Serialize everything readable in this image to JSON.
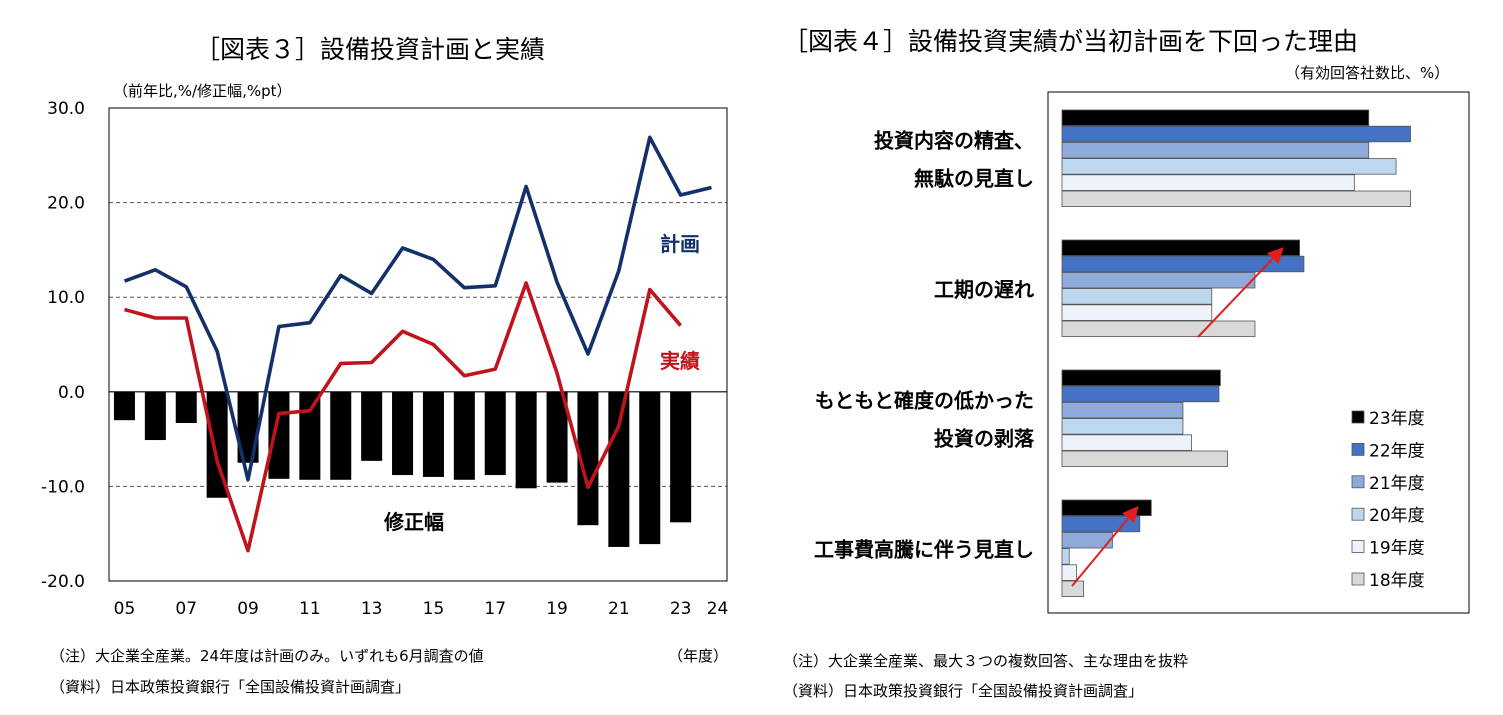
{
  "left": {
    "title": "［図表３］設備投資計画と実績",
    "unit": "（前年比,%/修正幅,%pt）",
    "xunit": "（年度）",
    "note1": "（注）大企業全産業。24年度は計画のみ。いずれも6月調査の値",
    "note2": "（資料）日本政策投資銀行「全国設備投資計画調査」",
    "label_plan": "計画",
    "label_actual": "実績",
    "label_revision": "修正幅",
    "colors": {
      "plan": "#13306b",
      "actual": "#c0141c",
      "revision": "#000000"
    }
  },
  "right": {
    "title": "［図表４］設備投資実績が当初計画を下回った理由",
    "unit": "（有効回答社数比、%）",
    "note1": "（注）大企業全産業、最大３つの複数回答、主な理由を抜粋",
    "note2": "（資料）日本政策投資銀行「全国設備投資計画調査」"
  },
  "chart_data": [
    {
      "type": "line",
      "ylim": [
        -20,
        30
      ],
      "yticks": [
        "30.0",
        "20.0",
        "10.0",
        "0.0",
        "-10.0",
        "-20.0"
      ],
      "x": [
        2005,
        2006,
        2007,
        2008,
        2009,
        2010,
        2011,
        2012,
        2013,
        2014,
        2015,
        2016,
        2017,
        2018,
        2019,
        2020,
        2021,
        2022,
        2023,
        2024
      ],
      "xtick_labels": [
        "05",
        "07",
        "09",
        "11",
        "13",
        "15",
        "17",
        "19",
        "21",
        "23",
        "24"
      ],
      "series": [
        {
          "name": "計画",
          "kind": "line",
          "values": [
            11.7,
            12.9,
            11.1,
            4.3,
            -9.3,
            6.9,
            7.3,
            12.3,
            10.4,
            15.2,
            14.0,
            11.0,
            11.2,
            21.7,
            11.6,
            4.0,
            12.8,
            26.9,
            20.8,
            21.6
          ]
        },
        {
          "name": "実績",
          "kind": "line",
          "values": [
            8.7,
            7.8,
            7.8,
            -7.3,
            -16.8,
            -2.3,
            -2.0,
            3.0,
            3.1,
            6.4,
            5.0,
            1.7,
            2.4,
            11.5,
            2.0,
            -10.1,
            -3.6,
            10.8,
            7.0,
            null
          ]
        },
        {
          "name": "修正幅",
          "kind": "bar",
          "values": [
            -3.0,
            -5.1,
            -3.3,
            -11.2,
            -7.5,
            -9.2,
            -9.3,
            -9.3,
            -7.3,
            -8.8,
            -9.0,
            -9.3,
            -8.8,
            -10.2,
            -9.6,
            -14.1,
            -16.4,
            -16.1,
            -13.8,
            null
          ]
        }
      ]
    },
    {
      "type": "bar",
      "orientation": "horizontal",
      "xlim": [
        0,
        30
      ],
      "categories": [
        {
          "lines": [
            "投資内容の精査、",
            "無駄の見直し"
          ]
        },
        {
          "lines": [
            "工期の遅れ"
          ]
        },
        {
          "lines": [
            "もともと確度の低かった",
            "投資の剥落"
          ]
        },
        {
          "lines": [
            "工事費高騰に伴う見直し"
          ]
        }
      ],
      "series": [
        {
          "name": "23年度",
          "color": "#000000",
          "values": [
            21.3,
            16.5,
            11.0,
            6.2
          ]
        },
        {
          "name": "22年度",
          "color": "#4472c4",
          "values": [
            24.2,
            16.8,
            10.9,
            5.4
          ]
        },
        {
          "name": "21年度",
          "color": "#8eaadb",
          "values": [
            21.3,
            13.4,
            8.4,
            3.5
          ]
        },
        {
          "name": "20年度",
          "color": "#bdd7ee",
          "values": [
            23.2,
            10.4,
            8.4,
            0.5
          ]
        },
        {
          "name": "19年度",
          "color": "#eef3fb",
          "values": [
            20.3,
            10.4,
            9.0,
            1.0
          ]
        },
        {
          "name": "18年度",
          "color": "#d9d9d9",
          "values": [
            24.2,
            13.4,
            11.5,
            1.5
          ]
        }
      ]
    }
  ]
}
